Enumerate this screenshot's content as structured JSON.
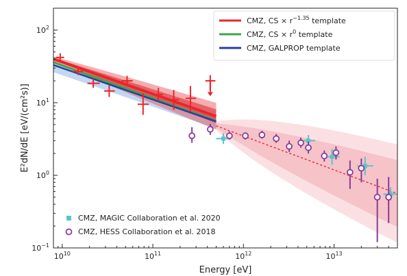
{
  "chart_data": {
    "type": "scatter",
    "xlabel": "Energy [eV]",
    "ylabel": "E²dN/dE [eV/(cm²s)]",
    "xscale": "log",
    "yscale": "log",
    "xlim": [
      8000000000.0,
      50000000000000.0
    ],
    "ylim": [
      0.1,
      200
    ],
    "x_tick_labels": [
      {
        "base": "10",
        "exp": "10",
        "value": 10000000000.0
      },
      {
        "base": "10",
        "exp": "11",
        "value": 100000000000.0
      },
      {
        "base": "10",
        "exp": "12",
        "value": 1000000000000.0
      },
      {
        "base": "10",
        "exp": "13",
        "value": 10000000000000.0
      }
    ],
    "y_tick_labels": [
      {
        "base": "10",
        "exp": "−1",
        "value": 0.1
      },
      {
        "base": "10",
        "exp": "0",
        "value": 1
      },
      {
        "base": "10",
        "exp": "1",
        "value": 10
      },
      {
        "base": "10",
        "exp": "2",
        "value": 100
      }
    ],
    "legend_top": [
      {
        "name": "CMZ, CS × r",
        "sup": "−1.35",
        "suffix": " template",
        "color": "#e8262b"
      },
      {
        "name": "CMZ, CS × r",
        "sup": "0",
        "suffix": " template",
        "color": "#3fa34d"
      },
      {
        "name": "CMZ, GALPROP template",
        "sup": "",
        "suffix": "",
        "color": "#2a3e9c"
      }
    ],
    "legend_bottom": [
      {
        "name": "CMZ, MAGIC Collaboration et al. 2020",
        "color": "#5bc4c9",
        "marker": "square"
      },
      {
        "name": "CMZ, HESS Collaboration et al. 2018",
        "color": "#8a3a9a",
        "marker": "circle"
      }
    ],
    "models": [
      {
        "name": "CS r^-1.35",
        "color": "#e8262b",
        "x": [
          8000000000.0,
          500000000000.0
        ],
        "y": [
          40,
          6.5
        ],
        "width": 4
      },
      {
        "name": "CS r^0",
        "color": "#3fa34d",
        "x": [
          8000000000.0,
          500000000000.0
        ],
        "y": [
          36,
          5.6
        ],
        "width": 3
      },
      {
        "name": "GALPROP",
        "color": "#2a3e9c",
        "x": [
          8000000000.0,
          500000000000.0
        ],
        "y": [
          33,
          5.5
        ],
        "width": 2.5
      }
    ],
    "extrapolation": {
      "color": "#e8262b",
      "x": [
        500000000000.0,
        50000000000000.0
      ],
      "y": [
        4.8,
        0.56
      ]
    },
    "fermi_points": {
      "color": "#e8262b",
      "points": [
        {
          "x": 9500000000.0,
          "y": 42,
          "ylo": 37,
          "yhi": 48,
          "xlo": 8500000000.0,
          "xhi": 10500000000.0
        },
        {
          "x": 15000000000.0,
          "y": 27,
          "ylo": 24,
          "yhi": 30,
          "xlo": 13000000000.0,
          "xhi": 17000000000.0
        },
        {
          "x": 22000000000.0,
          "y": 18.5,
          "ylo": 16,
          "yhi": 21.5,
          "xlo": 19000000000.0,
          "xhi": 26000000000.0
        },
        {
          "x": 33000000000.0,
          "y": 14.5,
          "ylo": 12,
          "yhi": 17.5,
          "xlo": 29000000000.0,
          "xhi": 38000000000.0
        },
        {
          "x": 52000000000.0,
          "y": 20,
          "ylo": 17,
          "yhi": 23.5,
          "xlo": 45000000000.0,
          "xhi": 60000000000.0
        },
        {
          "x": 78000000000.0,
          "y": 9.5,
          "ylo": 6.8,
          "yhi": 13.5,
          "xlo": 68000000000.0,
          "xhi": 90000000000.0
        },
        {
          "x": 115000000000.0,
          "y": 13,
          "ylo": 10.5,
          "yhi": 16,
          "xlo": 100000000000.0,
          "xhi": 130000000000.0
        },
        {
          "x": 170000000000.0,
          "y": 11,
          "ylo": 8,
          "yhi": 15,
          "xlo": 150000000000.0,
          "xhi": 195000000000.0
        },
        {
          "x": 260000000000.0,
          "y": 11.5,
          "ylo": 7.5,
          "yhi": 17,
          "xlo": 230000000000.0,
          "xhi": 300000000000.0
        },
        {
          "x": 430000000000.0,
          "y": 20,
          "ylo": 15,
          "yhi": 24,
          "xlo": 380000000000.0,
          "xhi": 490000000000.0
        }
      ],
      "upper_limit": {
        "x": 430000000000.0,
        "y": 20,
        "to": 14
      }
    },
    "magic_points": {
      "color": "#5bc4c9",
      "points": [
        {
          "x": 600000000000.0,
          "y": 3.2,
          "ylo": 2.7,
          "yhi": 3.8,
          "xlo": 500000000000.0,
          "xhi": 720000000000.0
        },
        {
          "x": 5200000000000.0,
          "y": 3.0,
          "ylo": 2.5,
          "yhi": 3.6,
          "xlo": 4300000000000.0,
          "xhi": 6200000000000.0
        },
        {
          "x": 9500000000000.0,
          "y": 1.8,
          "ylo": 1.4,
          "yhi": 2.3,
          "xlo": 8000000000000.0,
          "xhi": 11500000000000.0
        },
        {
          "x": 22000000000000.0,
          "y": 1.35,
          "ylo": 1.0,
          "yhi": 1.8,
          "xlo": 18000000000000.0,
          "xhi": 27000000000000.0
        },
        {
          "x": 42000000000000.0,
          "y": 0.55,
          "ylo": 0.45,
          "yhi": 0.68,
          "xlo": 35000000000000.0,
          "xhi": 50000000000000.0
        }
      ]
    },
    "hess_points": {
      "color": "#8a3a9a",
      "points": [
        {
          "x": 270000000000.0,
          "y": 3.5,
          "ylo": 2.8,
          "yhi": 4.6
        },
        {
          "x": 430000000000.0,
          "y": 4.3,
          "ylo": 3.6,
          "yhi": 5.1
        },
        {
          "x": 700000000000.0,
          "y": 3.5,
          "ylo": 3.1,
          "yhi": 4.0
        },
        {
          "x": 1050000000000.0,
          "y": 3.5,
          "ylo": 3.1,
          "yhi": 3.9
        },
        {
          "x": 1600000000000.0,
          "y": 3.6,
          "ylo": 3.2,
          "yhi": 4.1
        },
        {
          "x": 2300000000000.0,
          "y": 3.2,
          "ylo": 2.8,
          "yhi": 3.7
        },
        {
          "x": 3200000000000.0,
          "y": 2.5,
          "ylo": 2.1,
          "yhi": 3.0
        },
        {
          "x": 4300000000000.0,
          "y": 2.8,
          "ylo": 2.4,
          "yhi": 3.3
        },
        {
          "x": 5200000000000.0,
          "y": 2.4,
          "ylo": 2.0,
          "yhi": 2.9
        },
        {
          "x": 7800000000000.0,
          "y": 1.85,
          "ylo": 1.55,
          "yhi": 2.2
        },
        {
          "x": 10500000000000.0,
          "y": 2.05,
          "ylo": 1.65,
          "yhi": 2.5
        },
        {
          "x": 15000000000000.0,
          "y": 1.1,
          "ylo": 0.65,
          "yhi": 1.6
        },
        {
          "x": 20000000000000.0,
          "y": 1.25,
          "ylo": 0.8,
          "yhi": 1.7
        },
        {
          "x": 30000000000000.0,
          "y": 0.5,
          "ylo": 0.12,
          "yhi": 0.9
        },
        {
          "x": 40000000000000.0,
          "y": 0.5,
          "ylo": 0.22,
          "yhi": 0.95
        }
      ]
    }
  }
}
